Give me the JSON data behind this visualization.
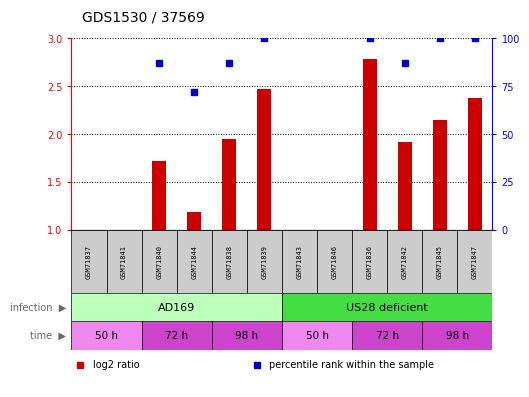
{
  "title": "GDS1530 / 37569",
  "samples": [
    "GSM71837",
    "GSM71841",
    "GSM71840",
    "GSM71844",
    "GSM71838",
    "GSM71839",
    "GSM71843",
    "GSM71846",
    "GSM71836",
    "GSM71842",
    "GSM71845",
    "GSM71847"
  ],
  "log2_ratio": [
    1.0,
    1.0,
    1.72,
    1.18,
    1.95,
    2.47,
    1.0,
    1.0,
    2.78,
    1.92,
    2.15,
    2.38
  ],
  "percentile_rank": [
    null,
    null,
    87,
    72,
    87,
    100,
    null,
    null,
    100,
    87,
    100,
    100
  ],
  "bar_color": "#cc0000",
  "dot_color": "#0000cc",
  "ylim_left": [
    1.0,
    3.0
  ],
  "ylim_right": [
    0,
    100
  ],
  "yticks_left": [
    1.0,
    1.5,
    2.0,
    2.5,
    3.0
  ],
  "yticks_right": [
    0,
    25,
    50,
    75,
    100
  ],
  "infection_groups": [
    {
      "label": "AD169",
      "start": 0,
      "end": 5,
      "color": "#bbffbb"
    },
    {
      "label": "US28 deficient",
      "start": 6,
      "end": 11,
      "color": "#44dd44"
    }
  ],
  "time_groups": [
    {
      "label": "50 h",
      "start": 0,
      "end": 1,
      "color": "#ee88ee"
    },
    {
      "label": "72 h",
      "start": 2,
      "end": 3,
      "color": "#cc44cc"
    },
    {
      "label": "98 h",
      "start": 4,
      "end": 5,
      "color": "#cc44cc"
    },
    {
      "label": "50 h",
      "start": 6,
      "end": 7,
      "color": "#ee88ee"
    },
    {
      "label": "72 h",
      "start": 8,
      "end": 9,
      "color": "#cc44cc"
    },
    {
      "label": "98 h",
      "start": 10,
      "end": 11,
      "color": "#cc44cc"
    }
  ],
  "legend_entries": [
    {
      "label": "log2 ratio",
      "color": "#cc0000"
    },
    {
      "label": "percentile rank within the sample",
      "color": "#0000cc"
    }
  ],
  "sample_box_color": "#cccccc",
  "title_fontsize": 10,
  "bar_width": 0.4
}
